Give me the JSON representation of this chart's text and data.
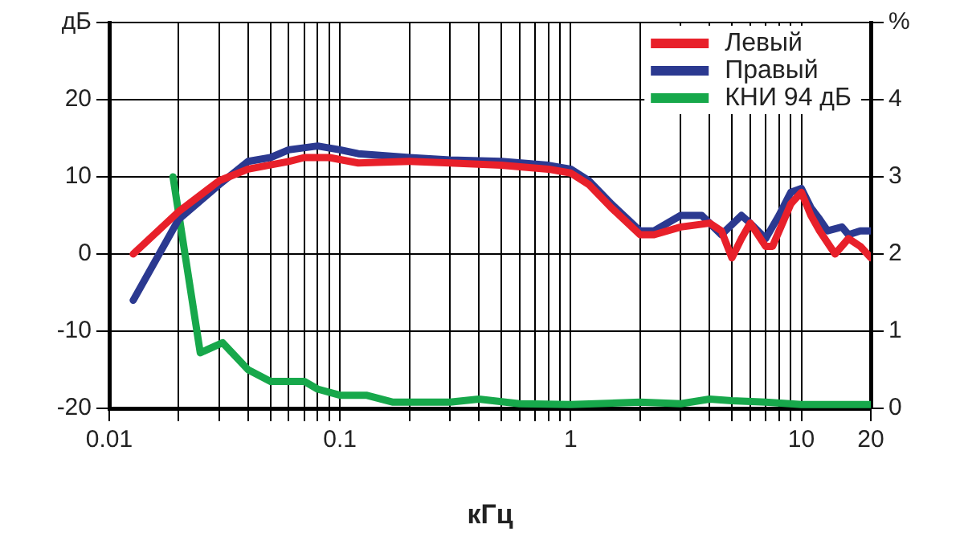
{
  "chart_data": {
    "type": "line",
    "xlabel": "кГц",
    "xlim": [
      0.01,
      20
    ],
    "xticks": [
      0.01,
      {
        "value": 0.02,
        "label": null
      },
      {
        "value": 0.03,
        "label": null
      },
      {
        "value": 0.04,
        "label": null
      },
      {
        "value": 0.05,
        "label": null
      },
      {
        "value": 0.06,
        "label": null
      },
      {
        "value": 0.07,
        "label": null
      },
      {
        "value": 0.08,
        "label": null
      },
      {
        "value": 0.09,
        "label": null
      },
      0.1,
      {
        "value": 0.2,
        "label": null
      },
      {
        "value": 0.3,
        "label": null
      },
      {
        "value": 0.4,
        "label": null
      },
      {
        "value": 0.5,
        "label": null
      },
      {
        "value": 0.6,
        "label": null
      },
      {
        "value": 0.7,
        "label": null
      },
      {
        "value": 0.8,
        "label": null
      },
      {
        "value": 0.9,
        "label": null
      },
      1,
      {
        "value": 2,
        "label": null
      },
      {
        "value": 3,
        "label": null
      },
      {
        "value": 4,
        "label": null
      },
      {
        "value": 5,
        "label": null
      },
      {
        "value": 6,
        "label": null
      },
      {
        "value": 7,
        "label": null
      },
      {
        "value": 8,
        "label": null
      },
      {
        "value": 9,
        "label": null
      },
      10,
      20
    ],
    "log": "x",
    "ylim": [
      -20,
      30
    ],
    "yticks": [
      -20,
      -10,
      0,
      10,
      20,
      {
        "value": 30,
        "label": "дБ"
      }
    ],
    "y2lim": [
      0,
      5
    ],
    "y2ticks": [
      0,
      1,
      2,
      3,
      4,
      {
        "value": 5,
        "label": "%"
      }
    ],
    "grid": true,
    "legend": "top right",
    "marker": "none",
    "line_style": "solid",
    "series": [
      {
        "name": "Левый",
        "color": "#e8202a",
        "x": [
          0.0127,
          0.02,
          0.03,
          0.04,
          0.06,
          0.07,
          0.09,
          0.12,
          0.2,
          0.3,
          0.5,
          0.8,
          1,
          1.2,
          1.5,
          2,
          2.3,
          3,
          4,
          4.5,
          5,
          5.5,
          6,
          7,
          7.5,
          9,
          10,
          11,
          12,
          14,
          16,
          18,
          20
        ],
        "values": [
          0,
          5.5,
          9.5,
          11,
          12,
          12.5,
          12.5,
          11.8,
          12,
          11.8,
          11.5,
          11,
          10.5,
          9,
          6,
          2.5,
          2.5,
          3.5,
          4,
          3,
          -0.5,
          2,
          4,
          1,
          1,
          6.5,
          8,
          5,
          3,
          0,
          2,
          1,
          -0.5
        ]
      },
      {
        "name": "Правый",
        "color": "#2b3990",
        "x": [
          0.0127,
          0.02,
          0.03,
          0.04,
          0.05,
          0.06,
          0.08,
          0.1,
          0.12,
          0.2,
          0.3,
          0.5,
          0.8,
          1,
          1.2,
          1.5,
          2,
          2.3,
          3,
          3.7,
          4.5,
          5.5,
          6,
          7,
          8,
          9,
          10,
          11,
          12,
          13,
          15,
          16,
          18,
          20
        ],
        "values": [
          -6,
          4.5,
          9,
          12,
          12.5,
          13.5,
          14,
          13.5,
          13,
          12.5,
          12.2,
          12,
          11.5,
          11,
          9.5,
          6.5,
          3,
          3,
          5,
          5,
          2.5,
          5,
          4,
          2,
          5,
          8,
          8.5,
          6,
          4.5,
          3,
          3.5,
          2.5,
          3,
          3
        ]
      },
      {
        "name": "КНИ 94 дБ",
        "color": "#17a84b",
        "axis": "y2",
        "x": [
          0.0189,
          0.0248,
          0.031,
          0.04,
          0.05,
          0.07,
          0.08,
          0.1,
          0.13,
          0.17,
          0.3,
          0.4,
          0.6,
          1,
          2,
          3,
          4,
          5,
          7,
          10,
          20
        ],
        "values": [
          3.0,
          0.72,
          0.85,
          0.5,
          0.35,
          0.35,
          0.25,
          0.17,
          0.17,
          0.08,
          0.08,
          0.12,
          0.06,
          0.05,
          0.08,
          0.06,
          0.12,
          0.1,
          0.08,
          0.05,
          0.05
        ]
      }
    ]
  }
}
